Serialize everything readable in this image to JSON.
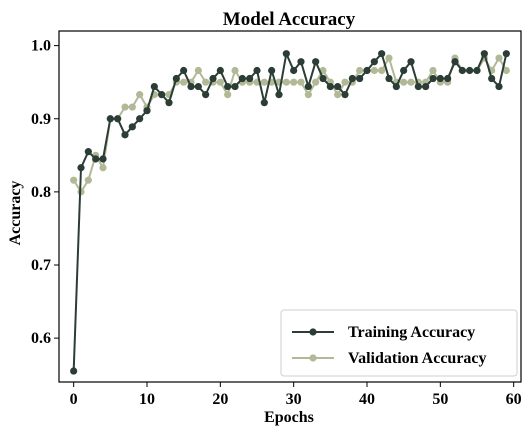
{
  "chart_data": {
    "type": "line",
    "title": "Model Accuracy",
    "xlabel": "Epochs",
    "ylabel": "Accuracy",
    "xlim": [
      -2,
      61
    ],
    "ylim": [
      0.54,
      1.02
    ],
    "xticks": [
      0,
      10,
      20,
      30,
      40,
      50,
      60
    ],
    "yticks": [
      0.6,
      0.7,
      0.8,
      0.9,
      1.0
    ],
    "xtick_labels": [
      "0",
      "10",
      "20",
      "30",
      "40",
      "50",
      "60"
    ],
    "ytick_labels": [
      "0.6",
      "0.7",
      "0.8",
      "0.9",
      "1.0"
    ],
    "grid": false,
    "legend_position": "lower-right",
    "x": [
      0,
      1,
      2,
      3,
      4,
      5,
      6,
      7,
      8,
      9,
      10,
      11,
      12,
      13,
      14,
      15,
      16,
      17,
      18,
      19,
      20,
      21,
      22,
      23,
      24,
      25,
      26,
      27,
      28,
      29,
      30,
      31,
      32,
      33,
      34,
      35,
      36,
      37,
      38,
      39,
      40,
      41,
      42,
      43,
      44,
      45,
      46,
      47,
      48,
      49,
      50,
      51,
      52,
      53,
      54,
      55,
      56,
      57,
      58,
      59
    ],
    "series": [
      {
        "name": "Training Accuracy",
        "color": "#2b3d35",
        "values": [
          0.555,
          0.833,
          0.855,
          0.845,
          0.845,
          0.9,
          0.9,
          0.878,
          0.889,
          0.9,
          0.911,
          0.944,
          0.933,
          0.922,
          0.955,
          0.966,
          0.944,
          0.944,
          0.933,
          0.955,
          0.966,
          0.944,
          0.944,
          0.955,
          0.955,
          0.966,
          0.922,
          0.966,
          0.933,
          0.989,
          0.966,
          0.978,
          0.944,
          0.978,
          0.955,
          0.944,
          0.944,
          0.933,
          0.955,
          0.955,
          0.966,
          0.978,
          0.989,
          0.955,
          0.944,
          0.966,
          0.978,
          0.944,
          0.944,
          0.955,
          0.955,
          0.955,
          0.978,
          0.966,
          0.966,
          0.966,
          0.989,
          0.955,
          0.944,
          0.989
        ]
      },
      {
        "name": "Validation Accuracy",
        "color": "#b2b997",
        "values": [
          0.816,
          0.8,
          0.816,
          0.85,
          0.833,
          0.9,
          0.9,
          0.916,
          0.916,
          0.933,
          0.916,
          0.933,
          0.933,
          0.933,
          0.95,
          0.95,
          0.95,
          0.966,
          0.95,
          0.95,
          0.95,
          0.933,
          0.966,
          0.95,
          0.95,
          0.95,
          0.95,
          0.95,
          0.95,
          0.95,
          0.95,
          0.95,
          0.933,
          0.95,
          0.966,
          0.95,
          0.933,
          0.95,
          0.95,
          0.966,
          0.966,
          0.966,
          0.966,
          0.983,
          0.95,
          0.95,
          0.95,
          0.95,
          0.95,
          0.966,
          0.95,
          0.95,
          0.983,
          0.966,
          0.966,
          0.966,
          0.983,
          0.966,
          0.983,
          0.966
        ]
      }
    ]
  }
}
